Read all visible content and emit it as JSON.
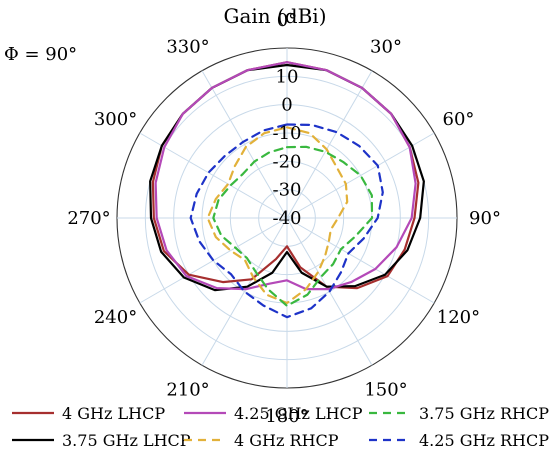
{
  "chart_data": {
    "type": "polar-line",
    "title": "Gain (dBi)",
    "annotation": "Φ = 90°",
    "angle_unit": "deg",
    "angle_ticks": [
      0,
      30,
      60,
      90,
      120,
      150,
      180,
      210,
      240,
      270,
      300,
      330
    ],
    "angle_tick_labels": [
      "0°",
      "30°",
      "60°",
      "90°",
      "120°",
      "150°",
      "180°",
      "210°",
      "240°",
      "270°",
      "300°",
      "330°"
    ],
    "radial_ticks": [
      -40,
      -30,
      -20,
      -10,
      0,
      10
    ],
    "radial_tick_labels": [
      "-40",
      "-30",
      "-20",
      "-10",
      "0",
      "10"
    ],
    "r_range": [
      -40,
      20
    ],
    "grid": true,
    "legend_position": "bottom",
    "colors": {
      "axis": "#333333",
      "grid": "#c8d9e9"
    },
    "series": [
      {
        "name": "4 GHz LHCP",
        "color": "#a62f2f",
        "dash": "solid",
        "points": [
          [
            0,
            15
          ],
          [
            15,
            14
          ],
          [
            30,
            13
          ],
          [
            45,
            12
          ],
          [
            60,
            10
          ],
          [
            75,
            8
          ],
          [
            90,
            5
          ],
          [
            105,
            3
          ],
          [
            120,
            1
          ],
          [
            135,
            -5
          ],
          [
            150,
            -12
          ],
          [
            165,
            -22
          ],
          [
            180,
            -30
          ],
          [
            195,
            -25
          ],
          [
            210,
            -15
          ],
          [
            225,
            -8
          ],
          [
            240,
            0
          ],
          [
            255,
            5
          ],
          [
            270,
            7
          ],
          [
            285,
            9
          ],
          [
            300,
            11
          ],
          [
            315,
            12
          ],
          [
            330,
            13
          ],
          [
            345,
            14
          ],
          [
            360,
            15
          ]
        ]
      },
      {
        "name": "3.75 GHz LHCP",
        "color": "#000000",
        "dash": "solid",
        "points": [
          [
            0,
            14
          ],
          [
            15,
            14
          ],
          [
            30,
            13
          ],
          [
            45,
            12
          ],
          [
            60,
            11
          ],
          [
            75,
            10
          ],
          [
            90,
            7
          ],
          [
            105,
            4
          ],
          [
            120,
            0
          ],
          [
            135,
            -6
          ],
          [
            150,
            -12
          ],
          [
            165,
            -20
          ],
          [
            180,
            -28
          ],
          [
            195,
            -20
          ],
          [
            210,
            -12
          ],
          [
            225,
            -4
          ],
          [
            240,
            2
          ],
          [
            255,
            6
          ],
          [
            270,
            8
          ],
          [
            285,
            10
          ],
          [
            300,
            11
          ],
          [
            315,
            12
          ],
          [
            330,
            13
          ],
          [
            345,
            14
          ],
          [
            360,
            14
          ]
        ]
      },
      {
        "name": "4.25 GHz LHCP",
        "color": "#b449b8",
        "dash": "solid",
        "points": [
          [
            0,
            15
          ],
          [
            15,
            14
          ],
          [
            30,
            13
          ],
          [
            45,
            12
          ],
          [
            60,
            10
          ],
          [
            75,
            7
          ],
          [
            90,
            4
          ],
          [
            105,
            0
          ],
          [
            120,
            -4
          ],
          [
            135,
            -8
          ],
          [
            150,
            -11
          ],
          [
            165,
            -14
          ],
          [
            180,
            -18
          ],
          [
            195,
            -16
          ],
          [
            210,
            -11
          ],
          [
            225,
            -5
          ],
          [
            240,
            1
          ],
          [
            255,
            4
          ],
          [
            270,
            6
          ],
          [
            285,
            8
          ],
          [
            300,
            10
          ],
          [
            315,
            12
          ],
          [
            330,
            13
          ],
          [
            345,
            14
          ],
          [
            360,
            15
          ]
        ]
      },
      {
        "name": "4 GHz RHCP",
        "color": "#e2b13a",
        "dash": "dash",
        "points": [
          [
            0,
            -8
          ],
          [
            15,
            -9
          ],
          [
            30,
            -12
          ],
          [
            45,
            -15
          ],
          [
            60,
            -16
          ],
          [
            75,
            -18
          ],
          [
            90,
            -22
          ],
          [
            105,
            -24
          ],
          [
            120,
            -23
          ],
          [
            135,
            -21
          ],
          [
            150,
            -18
          ],
          [
            165,
            -14
          ],
          [
            180,
            -10
          ],
          [
            195,
            -12
          ],
          [
            210,
            -16
          ],
          [
            225,
            -19
          ],
          [
            240,
            -17
          ],
          [
            255,
            -14
          ],
          [
            270,
            -12
          ],
          [
            285,
            -14
          ],
          [
            300,
            -16
          ],
          [
            315,
            -14
          ],
          [
            330,
            -11
          ],
          [
            345,
            -9
          ],
          [
            360,
            -8
          ]
        ]
      },
      {
        "name": "3.75 GHz RHCP",
        "color": "#39b83f",
        "dash": "dash",
        "points": [
          [
            0,
            -15
          ],
          [
            15,
            -14
          ],
          [
            30,
            -13
          ],
          [
            45,
            -12
          ],
          [
            60,
            -10
          ],
          [
            75,
            -9
          ],
          [
            90,
            -10
          ],
          [
            105,
            -15
          ],
          [
            120,
            -18
          ],
          [
            135,
            -17
          ],
          [
            150,
            -16
          ],
          [
            165,
            -12
          ],
          [
            180,
            -9
          ],
          [
            195,
            -14
          ],
          [
            210,
            -18
          ],
          [
            225,
            -20
          ],
          [
            240,
            -19
          ],
          [
            255,
            -16
          ],
          [
            270,
            -14
          ],
          [
            285,
            -15
          ],
          [
            300,
            -17
          ],
          [
            315,
            -18
          ],
          [
            330,
            -17
          ],
          [
            345,
            -16
          ],
          [
            360,
            -15
          ]
        ]
      },
      {
        "name": "4.25 GHz RHCP",
        "color": "#1e33c8",
        "dash": "dash",
        "points": [
          [
            0,
            -7
          ],
          [
            15,
            -6
          ],
          [
            30,
            -5
          ],
          [
            45,
            -4
          ],
          [
            60,
            -3
          ],
          [
            75,
            -5
          ],
          [
            90,
            -8
          ],
          [
            105,
            -12
          ],
          [
            120,
            -15
          ],
          [
            135,
            -13
          ],
          [
            150,
            -10
          ],
          [
            165,
            -7
          ],
          [
            180,
            -5
          ],
          [
            195,
            -8
          ],
          [
            210,
            -10
          ],
          [
            225,
            -12
          ],
          [
            240,
            -10
          ],
          [
            255,
            -8
          ],
          [
            270,
            -6
          ],
          [
            285,
            -7
          ],
          [
            300,
            -8
          ],
          [
            315,
            -9
          ],
          [
            330,
            -9
          ],
          [
            345,
            -8
          ],
          [
            360,
            -7
          ]
        ]
      }
    ]
  }
}
